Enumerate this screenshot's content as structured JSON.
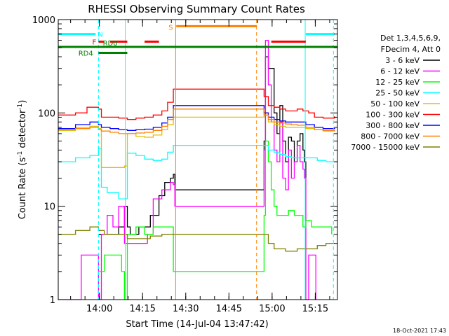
{
  "chart_data": {
    "type": "line",
    "title": "RHESSI Observing Summary Count Rates",
    "xlabel": "Start Time (14-Jul-04 13:47:42)",
    "ylabel_main": "Count Rate (s",
    "ylabel_sup1": "-1",
    "ylabel_mid": " detector",
    "ylabel_sup2": "-1",
    "ylabel_end": ")",
    "yscale": "log",
    "xlim_minutes": [
      -2,
      95
    ],
    "ylim": [
      1,
      1000
    ],
    "xticks": [
      {
        "t": 12.3,
        "label": "14:00"
      },
      {
        "t": 27.3,
        "label": "14:15"
      },
      {
        "t": 42.3,
        "label": "14:30"
      },
      {
        "t": 57.3,
        "label": "14:45"
      },
      {
        "t": 72.3,
        "label": "15:00"
      },
      {
        "t": 87.3,
        "label": "15:15"
      }
    ],
    "yticks": [
      {
        "v": 1,
        "label": "1"
      },
      {
        "v": 10,
        "label": "10"
      },
      {
        "v": 100,
        "label": "100"
      },
      {
        "v": 1000,
        "label": "1000"
      }
    ],
    "legend": {
      "header1": "Det 1,3,4,5,6,9,",
      "header2": "FDecim 4, Att 0",
      "entries": [
        {
          "label": "3 - 6 keV",
          "color": "#000000"
        },
        {
          "label": "6 - 12 keV",
          "color": "#ff00ff"
        },
        {
          "label": "12 - 25 keV",
          "color": "#00ff00"
        },
        {
          "label": "25 - 50 keV",
          "color": "#00ffff"
        },
        {
          "label": "50 - 100 keV",
          "color": "#e0c000"
        },
        {
          "label": "100 - 300 keV",
          "color": "#ff0000"
        },
        {
          "label": "300 - 800 keV",
          "color": "#0000ff"
        },
        {
          "label": "800 - 7000 keV",
          "color": "#ff8000"
        },
        {
          "label": "7000 - 15000 keV",
          "color": "#808000"
        }
      ]
    },
    "flag_labels": {
      "N": "N",
      "F": "F",
      "S": "S",
      "RD0": "RD0",
      "RD4": "RD4"
    },
    "verticals": [
      {
        "t": 12.0,
        "color": "#00ffff",
        "dash": true
      },
      {
        "t": 21.3,
        "color": "#00ffff",
        "dash": false
      },
      {
        "t": 38.8,
        "color": "#ff8000",
        "dash": false
      },
      {
        "t": 66.9,
        "color": "#ff8000",
        "dash": true
      },
      {
        "t": 83.8,
        "color": "#00ffff",
        "dash": false
      },
      {
        "t": 93.6,
        "color": "#00ffff",
        "dash": true
      }
    ],
    "flags": [
      {
        "name": "N",
        "color": "#00ffff",
        "v": 700,
        "segments": [
          [
            -2,
            11
          ],
          [
            84,
            94
          ]
        ]
      },
      {
        "name": "F",
        "color": "#ff0000",
        "v": 580,
        "segments": [
          [
            12,
            14
          ],
          [
            16,
            22
          ],
          [
            28,
            33
          ],
          [
            72,
            84
          ]
        ]
      },
      {
        "name": "S",
        "color": "#ff8000",
        "v": 850,
        "segments": [
          [
            39,
            67
          ]
        ]
      },
      {
        "name": "RD0",
        "color": "#008000",
        "v": 510,
        "segments": [
          [
            -2,
            95
          ]
        ]
      },
      {
        "name": "RD4",
        "color": "#008000",
        "v": 440,
        "segments": [
          [
            12,
            22
          ]
        ]
      }
    ],
    "series": [
      {
        "name": "3 - 6 keV",
        "color": "#000000",
        "points": [
          [
            12,
            5
          ],
          [
            15,
            5
          ],
          [
            19,
            6
          ],
          [
            21,
            10
          ],
          [
            22,
            6
          ],
          [
            23,
            5
          ],
          [
            26,
            6
          ],
          [
            30,
            8
          ],
          [
            33,
            13
          ],
          [
            35,
            18
          ],
          [
            37,
            20
          ],
          [
            38,
            22
          ],
          [
            38.5,
            15
          ],
          [
            69.5,
            50
          ],
          [
            70,
            400
          ],
          [
            71,
            300
          ],
          [
            73,
            100
          ],
          [
            74,
            60
          ],
          [
            75,
            120
          ],
          [
            76,
            50
          ],
          [
            77,
            30
          ],
          [
            78,
            55
          ],
          [
            79,
            50
          ],
          [
            80,
            30
          ],
          [
            81,
            50
          ],
          [
            82,
            60
          ],
          [
            83,
            40
          ],
          [
            83.5,
            30
          ],
          [
            84,
            1
          ]
        ]
      },
      {
        "name": "6 - 12 keV",
        "color": "#ff00ff",
        "points": [
          [
            -2,
            1
          ],
          [
            5,
            1
          ],
          [
            6,
            3
          ],
          [
            11,
            3
          ],
          [
            12,
            1
          ],
          [
            13,
            5
          ],
          [
            15,
            8
          ],
          [
            17,
            6
          ],
          [
            19,
            10
          ],
          [
            21,
            4
          ],
          [
            24,
            4
          ],
          [
            27,
            4
          ],
          [
            29,
            5
          ],
          [
            31,
            12
          ],
          [
            34,
            15
          ],
          [
            37,
            18
          ],
          [
            38,
            17
          ],
          [
            38.5,
            10
          ],
          [
            69.5,
            40
          ],
          [
            70,
            600
          ],
          [
            71,
            200
          ],
          [
            72,
            80
          ],
          [
            73,
            40
          ],
          [
            74,
            30
          ],
          [
            75,
            80
          ],
          [
            76,
            20
          ],
          [
            77,
            15
          ],
          [
            78,
            40
          ],
          [
            79,
            20
          ],
          [
            80,
            30
          ],
          [
            81,
            45
          ],
          [
            82,
            30
          ],
          [
            83,
            25
          ],
          [
            83.5,
            20
          ],
          [
            84,
            1
          ],
          [
            85,
            3
          ],
          [
            87,
            3
          ],
          [
            87.5,
            1
          ]
        ]
      },
      {
        "name": "12 - 25 keV",
        "color": "#00ff00",
        "points": [
          [
            12,
            2
          ],
          [
            14,
            3
          ],
          [
            18,
            3
          ],
          [
            20,
            2
          ],
          [
            21,
            1
          ],
          [
            22,
            5
          ],
          [
            25,
            6
          ],
          [
            28,
            5
          ],
          [
            31,
            6
          ],
          [
            34,
            6
          ],
          [
            37,
            6
          ],
          [
            38,
            2
          ],
          [
            69.5,
            8
          ],
          [
            70,
            50
          ],
          [
            71,
            30
          ],
          [
            72,
            15
          ],
          [
            73,
            10
          ],
          [
            74,
            8
          ],
          [
            76,
            8
          ],
          [
            78,
            9
          ],
          [
            80,
            8
          ],
          [
            82,
            8
          ],
          [
            83,
            6
          ],
          [
            84,
            7
          ],
          [
            86,
            6
          ],
          [
            90,
            6
          ],
          [
            93,
            5
          ]
        ]
      },
      {
        "name": "25 - 50 keV",
        "color": "#00ffff",
        "points": [
          [
            -2,
            30
          ],
          [
            4,
            33
          ],
          [
            9,
            35
          ],
          [
            12,
            42
          ],
          [
            13,
            16
          ],
          [
            15,
            14
          ],
          [
            19,
            12
          ],
          [
            21,
            12
          ],
          [
            22,
            37
          ],
          [
            25,
            35
          ],
          [
            28,
            32
          ],
          [
            31,
            31
          ],
          [
            34,
            32
          ],
          [
            36,
            38
          ],
          [
            38,
            45
          ],
          [
            69.5,
            45
          ],
          [
            71,
            40
          ],
          [
            73,
            38
          ],
          [
            75,
            36
          ],
          [
            77,
            34
          ],
          [
            79,
            33
          ],
          [
            81,
            33
          ],
          [
            83,
            33
          ],
          [
            85,
            33
          ],
          [
            88,
            31
          ],
          [
            91,
            30
          ],
          [
            94,
            30
          ]
        ]
      },
      {
        "name": "50 - 100 keV",
        "color": "#e0c000",
        "points": [
          [
            -2,
            65
          ],
          [
            4,
            70
          ],
          [
            9,
            72
          ],
          [
            12,
            68
          ],
          [
            13,
            26
          ],
          [
            18,
            26
          ],
          [
            21,
            27
          ],
          [
            22,
            60
          ],
          [
            25,
            56
          ],
          [
            28,
            55
          ],
          [
            31,
            58
          ],
          [
            34,
            66
          ],
          [
            36,
            75
          ],
          [
            38,
            90
          ],
          [
            69.5,
            100
          ],
          [
            71,
            80
          ],
          [
            73,
            75
          ],
          [
            75,
            72
          ],
          [
            77,
            70
          ],
          [
            79,
            70
          ],
          [
            81,
            70
          ],
          [
            84,
            68
          ],
          [
            87,
            66
          ],
          [
            90,
            64
          ],
          [
            94,
            63
          ]
        ]
      },
      {
        "name": "100 - 300 keV",
        "color": "#ff0000",
        "points": [
          [
            -2,
            95
          ],
          [
            4,
            100
          ],
          [
            8,
            115
          ],
          [
            12,
            110
          ],
          [
            13,
            90
          ],
          [
            16,
            90
          ],
          [
            19,
            88
          ],
          [
            22,
            85
          ],
          [
            25,
            88
          ],
          [
            28,
            90
          ],
          [
            31,
            95
          ],
          [
            34,
            105
          ],
          [
            36,
            130
          ],
          [
            38,
            180
          ],
          [
            69.5,
            150
          ],
          [
            71,
            120
          ],
          [
            73,
            115
          ],
          [
            75,
            110
          ],
          [
            77,
            105
          ],
          [
            79,
            105
          ],
          [
            81,
            110
          ],
          [
            83,
            105
          ],
          [
            85,
            100
          ],
          [
            87,
            90
          ],
          [
            90,
            88
          ],
          [
            94,
            92
          ]
        ]
      },
      {
        "name": "300 - 800 keV",
        "color": "#0000ff",
        "points": [
          [
            -2,
            68
          ],
          [
            4,
            75
          ],
          [
            9,
            80
          ],
          [
            12,
            75
          ],
          [
            13,
            70
          ],
          [
            16,
            68
          ],
          [
            19,
            66
          ],
          [
            22,
            65
          ],
          [
            25,
            66
          ],
          [
            28,
            67
          ],
          [
            31,
            70
          ],
          [
            34,
            78
          ],
          [
            36,
            90
          ],
          [
            38,
            120
          ],
          [
            69.5,
            100
          ],
          [
            71,
            90
          ],
          [
            73,
            85
          ],
          [
            75,
            82
          ],
          [
            77,
            80
          ],
          [
            79,
            80
          ],
          [
            81,
            80
          ],
          [
            84,
            75
          ],
          [
            87,
            70
          ],
          [
            90,
            68
          ],
          [
            94,
            67
          ]
        ]
      },
      {
        "name": "800 - 7000 keV",
        "color": "#ff8000",
        "points": [
          [
            -2,
            66
          ],
          [
            4,
            68
          ],
          [
            9,
            70
          ],
          [
            12,
            66
          ],
          [
            13,
            64
          ],
          [
            16,
            62
          ],
          [
            19,
            60
          ],
          [
            22,
            60
          ],
          [
            25,
            61
          ],
          [
            28,
            62
          ],
          [
            31,
            65
          ],
          [
            34,
            72
          ],
          [
            36,
            85
          ],
          [
            38,
            110
          ],
          [
            69.5,
            95
          ],
          [
            71,
            85
          ],
          [
            73,
            80
          ],
          [
            75,
            78
          ],
          [
            77,
            76
          ],
          [
            79,
            75
          ],
          [
            81,
            74
          ],
          [
            84,
            70
          ],
          [
            87,
            66
          ],
          [
            90,
            65
          ],
          [
            94,
            64
          ]
        ]
      },
      {
        "name": "7000 - 15000 keV",
        "color": "#808000",
        "points": [
          [
            -2,
            5
          ],
          [
            4,
            5.5
          ],
          [
            9,
            6
          ],
          [
            12,
            5.5
          ],
          [
            14,
            5
          ],
          [
            18,
            5
          ],
          [
            22,
            4.5
          ],
          [
            26,
            4.5
          ],
          [
            30,
            4.8
          ],
          [
            34,
            5
          ],
          [
            38,
            5
          ],
          [
            69.5,
            5
          ],
          [
            71,
            4
          ],
          [
            73,
            3.5
          ],
          [
            75,
            3.5
          ],
          [
            77,
            3.3
          ],
          [
            79,
            3.3
          ],
          [
            81,
            3.5
          ],
          [
            83,
            3.5
          ],
          [
            85,
            3.5
          ],
          [
            88,
            3.8
          ],
          [
            91,
            4
          ],
          [
            94,
            4
          ]
        ]
      }
    ]
  },
  "footer": {
    "timestamp": "18-Oct-2021 17:43"
  }
}
